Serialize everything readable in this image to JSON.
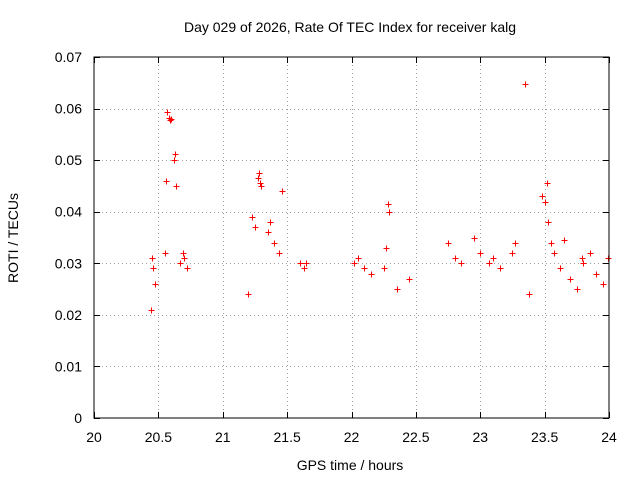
{
  "chart_data": {
    "type": "scatter",
    "title": "Day 029 of 2026, Rate Of TEC Index for receiver kalg",
    "xlabel": "GPS time / hours",
    "ylabel": "ROTI / TECUs",
    "xlim": [
      20,
      24
    ],
    "ylim": [
      0,
      0.07
    ],
    "xticks": [
      20,
      20.5,
      21,
      21.5,
      22,
      22.5,
      23,
      23.5,
      24
    ],
    "xtick_labels": [
      "20",
      "20.5",
      "21",
      "21.5",
      "22",
      "22.5",
      "23",
      "23.5",
      "24"
    ],
    "yticks": [
      0,
      0.01,
      0.02,
      0.03,
      0.04,
      0.05,
      0.06,
      0.07
    ],
    "ytick_labels": [
      "0",
      "0.01",
      "0.02",
      "0.03",
      "0.04",
      "0.05",
      "0.06",
      "0.07"
    ],
    "grid": true,
    "marker": "plus",
    "color": "#ff0000",
    "series": [
      {
        "name": "ROTI",
        "points": [
          [
            20.44,
            0.021
          ],
          [
            20.45,
            0.031
          ],
          [
            20.46,
            0.029
          ],
          [
            20.47,
            0.026
          ],
          [
            20.55,
            0.032
          ],
          [
            20.57,
            0.0593
          ],
          [
            20.58,
            0.0582
          ],
          [
            20.59,
            0.0577
          ],
          [
            20.6,
            0.058
          ],
          [
            20.56,
            0.046
          ],
          [
            20.62,
            0.05
          ],
          [
            20.63,
            0.0512
          ],
          [
            20.64,
            0.045
          ],
          [
            20.67,
            0.03
          ],
          [
            20.69,
            0.032
          ],
          [
            20.7,
            0.031
          ],
          [
            20.72,
            0.029
          ],
          [
            21.27,
            0.0465
          ],
          [
            21.28,
            0.0475
          ],
          [
            21.29,
            0.0455
          ],
          [
            21.3,
            0.045
          ],
          [
            21.23,
            0.039
          ],
          [
            21.25,
            0.037
          ],
          [
            21.35,
            0.036
          ],
          [
            21.46,
            0.044
          ],
          [
            21.2,
            0.024
          ],
          [
            21.37,
            0.038
          ],
          [
            21.4,
            0.034
          ],
          [
            21.44,
            0.032
          ],
          [
            21.6,
            0.03
          ],
          [
            21.63,
            0.029
          ],
          [
            21.65,
            0.03
          ],
          [
            22.02,
            0.03
          ],
          [
            22.05,
            0.031
          ],
          [
            22.1,
            0.029
          ],
          [
            22.15,
            0.028
          ],
          [
            22.28,
            0.0415
          ],
          [
            22.29,
            0.04
          ],
          [
            22.27,
            0.033
          ],
          [
            22.25,
            0.029
          ],
          [
            22.35,
            0.025
          ],
          [
            22.45,
            0.027
          ],
          [
            22.75,
            0.034
          ],
          [
            22.8,
            0.031
          ],
          [
            22.85,
            0.03
          ],
          [
            22.95,
            0.035
          ],
          [
            23.0,
            0.032
          ],
          [
            23.07,
            0.03
          ],
          [
            23.1,
            0.031
          ],
          [
            23.15,
            0.029
          ],
          [
            23.25,
            0.032
          ],
          [
            23.27,
            0.034
          ],
          [
            23.35,
            0.0648
          ],
          [
            23.38,
            0.024
          ],
          [
            23.48,
            0.043
          ],
          [
            23.5,
            0.0418
          ],
          [
            23.52,
            0.0455
          ],
          [
            23.53,
            0.038
          ],
          [
            23.55,
            0.034
          ],
          [
            23.57,
            0.032
          ],
          [
            23.62,
            0.029
          ],
          [
            23.65,
            0.0345
          ],
          [
            23.7,
            0.027
          ],
          [
            23.75,
            0.025
          ],
          [
            23.79,
            0.031
          ],
          [
            23.8,
            0.03
          ],
          [
            23.85,
            0.032
          ],
          [
            23.9,
            0.028
          ],
          [
            23.95,
            0.026
          ],
          [
            23.99,
            0.031
          ]
        ]
      }
    ]
  }
}
